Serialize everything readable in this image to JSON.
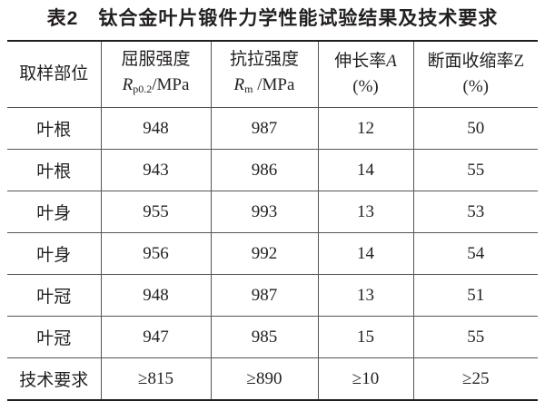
{
  "title": {
    "number": "表2",
    "text": "钛合金叶片锻件力学性能试验结果及技术要求"
  },
  "table": {
    "headers": [
      {
        "line1": "取样部位"
      },
      {
        "line1": "屈服强度",
        "sym": "R",
        "sub": "p0.2",
        "unit": "/MPa"
      },
      {
        "line1": "抗拉强度",
        "sym": "R",
        "sub": "m",
        "unit": " /MPa"
      },
      {
        "line1": "伸长率",
        "sym": "A",
        "line2": "(%)"
      },
      {
        "line1": "断面收缩率",
        "sym": "Z",
        "line2": "(%)"
      }
    ],
    "rows": [
      [
        "叶根",
        "948",
        "987",
        "12",
        "50"
      ],
      [
        "叶根",
        "943",
        "986",
        "14",
        "55"
      ],
      [
        "叶身",
        "955",
        "993",
        "13",
        "53"
      ],
      [
        "叶身",
        "956",
        "992",
        "14",
        "54"
      ],
      [
        "叶冠",
        "948",
        "987",
        "13",
        "51"
      ],
      [
        "叶冠",
        "947",
        "985",
        "15",
        "55"
      ],
      [
        "技术要求",
        "≥815",
        "≥890",
        "≥10",
        "≥25"
      ]
    ]
  }
}
